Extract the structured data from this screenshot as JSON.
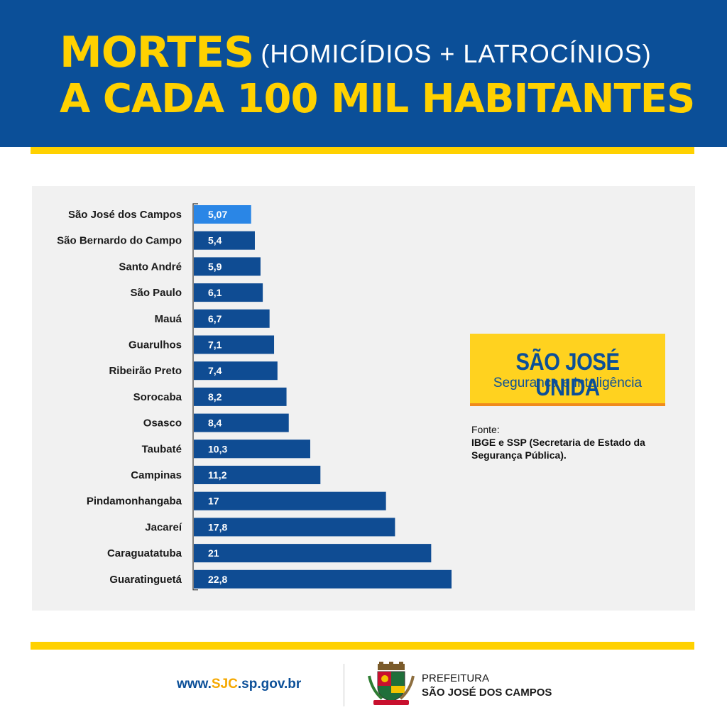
{
  "header": {
    "title_main": "MORTES",
    "title_paren": "(HOMICÍDIOS + LATROCÍNIOS)",
    "title_line2": "A CADA 100 MIL HABITANTES"
  },
  "badge": {
    "title": "SÃO JOSÉ UNIDA",
    "subtitle": "Segurança e Inteligência"
  },
  "source": {
    "label": "Fonte:",
    "text": "IBGE e SSP (Secretaria de Estado da Segurança Pública)."
  },
  "footer": {
    "url_prefix": "www.",
    "url_highlight": "SJC",
    "url_suffix": ".sp.gov.br",
    "org_line1": "PREFEITURA",
    "org_line2": "SÃO JOSÉ DOS CAMPOS"
  },
  "colors": {
    "brand_blue": "#0b4f98",
    "bar_blue": "#0f4c93",
    "highlight_bar": "#2a86e6",
    "accent_yellow": "#ffd100"
  },
  "chart_data": {
    "type": "bar",
    "orientation": "horizontal",
    "categories": [
      "São José dos Campos",
      "São Bernardo do Campo",
      "Santo André",
      "São Paulo",
      "Mauá",
      "Guarulhos",
      "Ribeirão Preto",
      "Sorocaba",
      "Osasco",
      "Taubaté",
      "Campinas",
      "Pindamonhangaba",
      "Jacareí",
      "Caraguatatuba",
      "Guaratinguetá"
    ],
    "values": [
      5.07,
      5.4,
      5.9,
      6.1,
      6.7,
      7.1,
      7.4,
      8.2,
      8.4,
      10.3,
      11.2,
      17,
      17.8,
      21,
      22.8
    ],
    "value_labels": [
      "5,07",
      "5,4",
      "5,9",
      "6,1",
      "6,7",
      "7,1",
      "7,4",
      "8,2",
      "8,4",
      "10,3",
      "11,2",
      "17",
      "17,8",
      "21",
      "22,8"
    ],
    "highlight_index": 0,
    "xlim": [
      0,
      22.8
    ],
    "grid": false,
    "legend": "none"
  }
}
